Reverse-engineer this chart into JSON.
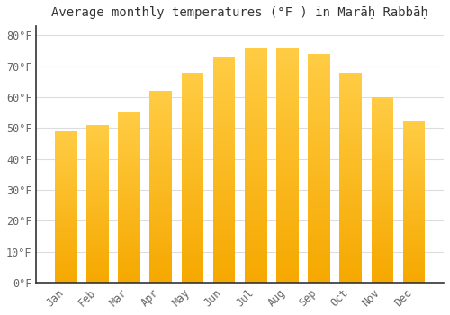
{
  "title": "Average monthly temperatures (°F ) in Marāḥ Rabbāḥ",
  "months": [
    "Jan",
    "Feb",
    "Mar",
    "Apr",
    "May",
    "Jun",
    "Jul",
    "Aug",
    "Sep",
    "Oct",
    "Nov",
    "Dec"
  ],
  "values": [
    49,
    51,
    55,
    62,
    68,
    73,
    76,
    76,
    74,
    68,
    60,
    52
  ],
  "bar_color_light": "#FFCC44",
  "bar_color_dark": "#F5A800",
  "background_color": "#FFFFFF",
  "grid_color": "#dddddd",
  "yticks": [
    0,
    10,
    20,
    30,
    40,
    50,
    60,
    70,
    80
  ],
  "ylim": [
    0,
    83
  ],
  "title_fontsize": 10,
  "tick_fontsize": 8.5,
  "text_color": "#666666",
  "bar_width": 0.7
}
